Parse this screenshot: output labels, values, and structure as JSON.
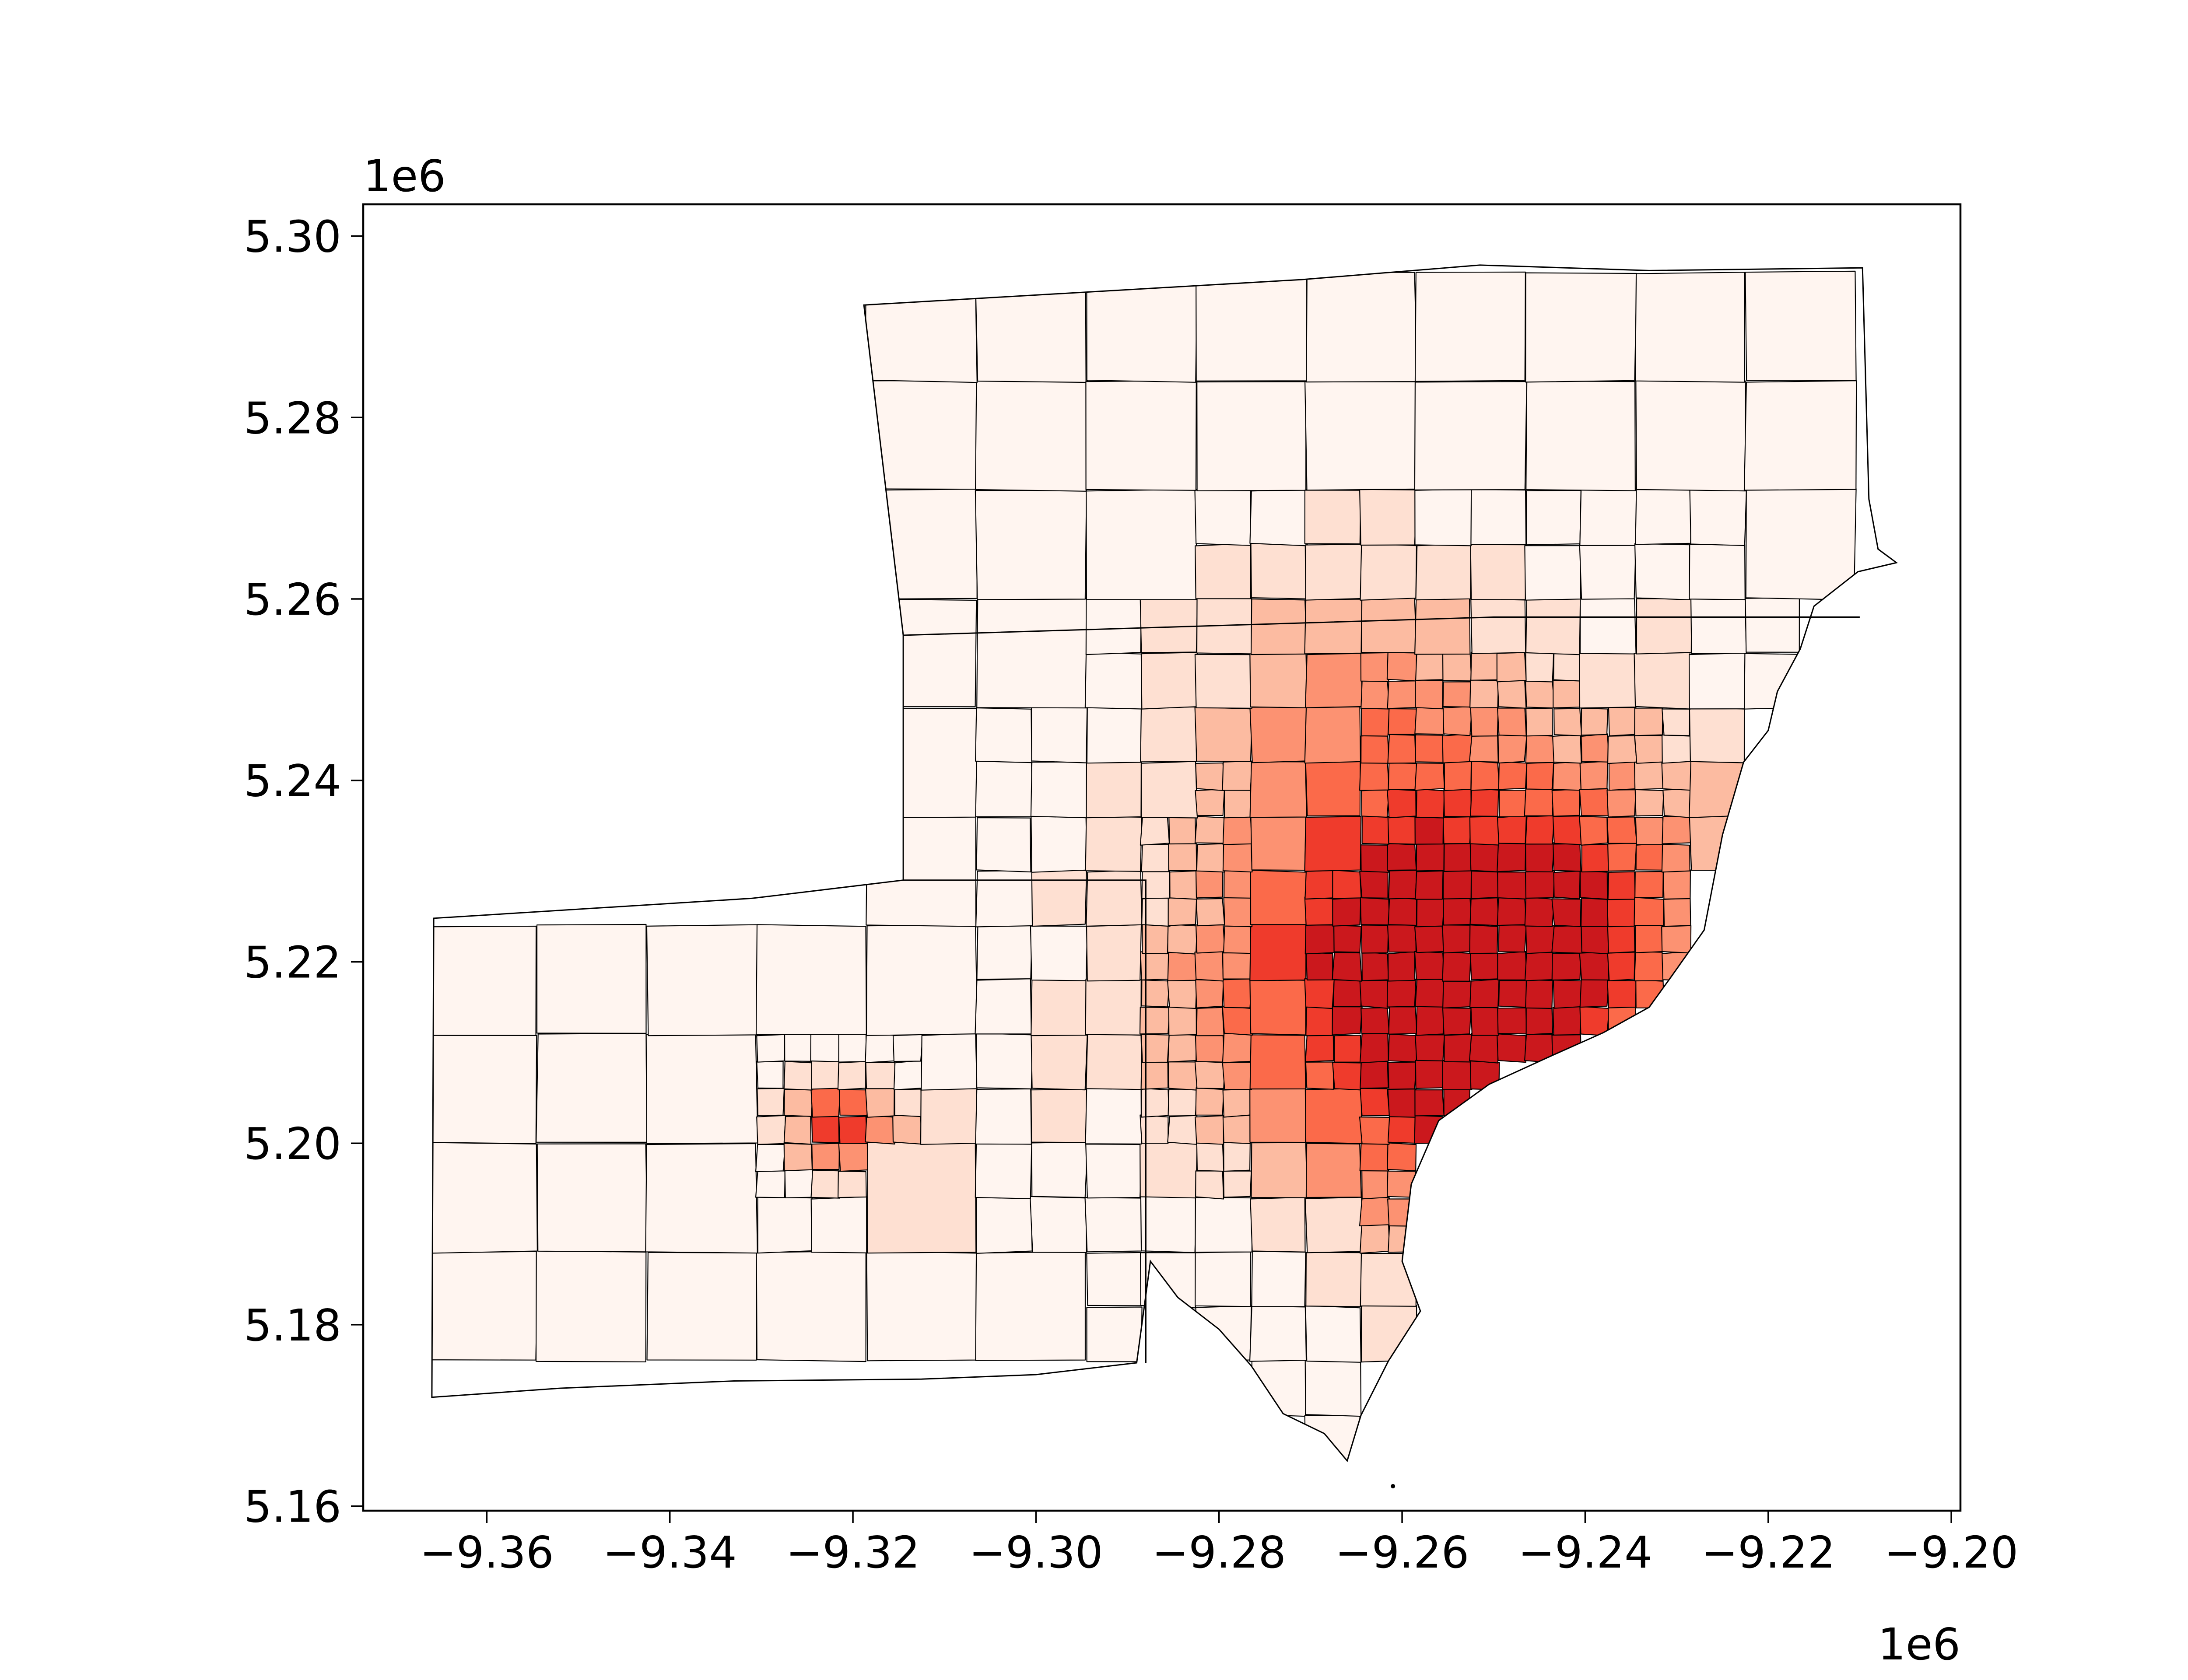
{
  "chart_data": {
    "type": "choropleth",
    "x_axis": {
      "ticks": [
        "−9.36",
        "−9.34",
        "−9.32",
        "−9.30",
        "−9.28",
        "−9.26",
        "−9.24",
        "−9.22",
        "−9.20"
      ],
      "tick_values": [
        -9.36,
        -9.34,
        -9.32,
        -9.3,
        -9.28,
        -9.26,
        -9.24,
        -9.22,
        -9.2
      ],
      "offset_label": "1e6",
      "range": [
        -9.3735,
        -9.199
      ]
    },
    "y_axis": {
      "ticks": [
        "5.16",
        "5.18",
        "5.20",
        "5.22",
        "5.24",
        "5.26",
        "5.28",
        "5.30"
      ],
      "tick_values": [
        5.16,
        5.18,
        5.2,
        5.22,
        5.24,
        5.26,
        5.28,
        5.3
      ],
      "offset_label": "1e6",
      "range": [
        5.1595,
        5.3035
      ]
    },
    "colormap": "Reds",
    "edge_color": "#000000",
    "grid": false,
    "legend": false,
    "outlines": [
      [
        [
          -9.3188,
          5.2924
        ],
        [
          -9.271,
          5.2952
        ],
        [
          -9.2515,
          5.2968
        ],
        [
          -9.233,
          5.2962
        ],
        [
          -9.2097,
          5.2965
        ],
        [
          -9.209,
          5.271
        ],
        [
          -9.208,
          5.2655
        ],
        [
          -9.206,
          5.264
        ],
        [
          -9.2102,
          5.263
        ],
        [
          -9.215,
          5.2592
        ],
        [
          -9.2165,
          5.2545
        ],
        [
          -9.219,
          5.2498
        ],
        [
          -9.22,
          5.2455
        ],
        [
          -9.2227,
          5.242
        ],
        [
          -9.225,
          5.234
        ],
        [
          -9.227,
          5.2235
        ],
        [
          -9.2305,
          5.2185
        ],
        [
          -9.233,
          5.215
        ],
        [
          -9.238,
          5.2122
        ],
        [
          -9.244,
          5.2095
        ],
        [
          -9.2505,
          5.2065
        ],
        [
          -9.256,
          5.2025
        ],
        [
          -9.259,
          5.1955
        ],
        [
          -9.26,
          5.187
        ],
        [
          -9.258,
          5.1815
        ],
        [
          -9.2615,
          5.176
        ],
        [
          -9.2645,
          5.17
        ],
        [
          -9.266,
          5.165
        ],
        [
          -9.2685,
          5.168
        ],
        [
          -9.273,
          5.1702
        ],
        [
          -9.2765,
          5.1755
        ],
        [
          -9.28,
          5.1795
        ],
        [
          -9.2845,
          5.183
        ],
        [
          -9.2875,
          5.187
        ],
        [
          -9.289,
          5.1758
        ],
        [
          -9.3,
          5.1745
        ],
        [
          -9.3125,
          5.174
        ],
        [
          -9.333,
          5.1738
        ],
        [
          -9.352,
          5.173
        ],
        [
          -9.366,
          5.172
        ],
        [
          -9.3658,
          5.2248
        ],
        [
          -9.331,
          5.227
        ],
        [
          -9.3145,
          5.229
        ],
        [
          -9.3145,
          5.256
        ],
        [
          -9.3188,
          5.2924
        ]
      ],
      [
        [
          -9.223,
          5.296
        ],
        [
          -9.22,
          5.2965
        ],
        [
          -9.215,
          5.2962
        ]
      ]
    ],
    "choropleth_classes": [
      {
        "level": 0,
        "color": "#fff5f0"
      },
      {
        "level": 1,
        "color": "#fee0d2"
      },
      {
        "level": 2,
        "color": "#fcbba1"
      },
      {
        "level": 3,
        "color": "#fc9272"
      },
      {
        "level": 4,
        "color": "#fb6a4a"
      },
      {
        "level": 5,
        "color": "#ef3b2c"
      },
      {
        "level": 6,
        "color": "#cb181d"
      }
    ]
  }
}
